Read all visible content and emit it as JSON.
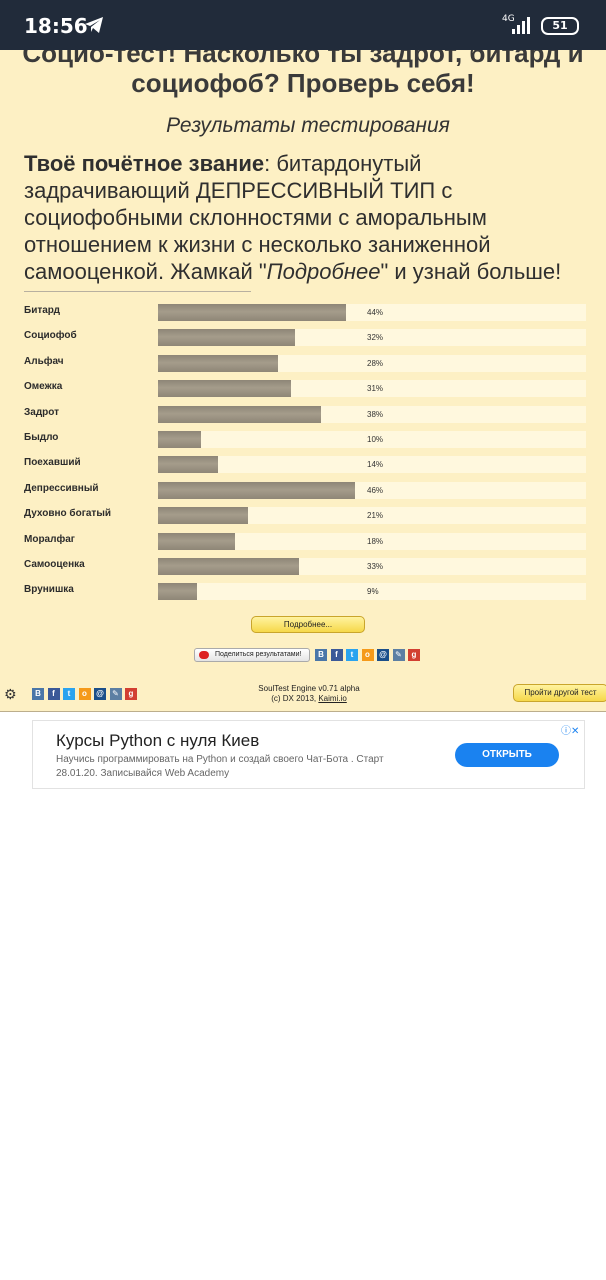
{
  "status_bar": {
    "time": "18:56",
    "network": "4G",
    "battery": "51"
  },
  "page": {
    "title": "Социо-тест! Насколько ты задрот, битард и социофоб? Проверь себя!",
    "subtitle": "Результаты тестирования",
    "result_label": "Твоё почётное звание",
    "result_text": ": битардонутый задрачивающий ДЕПРЕССИВНЫЙ ТИП с социофобными склонностями с аморальным отношением к жизни с несколько заниженной самооценкой. Жамкай \"",
    "result_link": "Подробнее",
    "result_tail": "\" и узнай больше!",
    "more_button": "Подробнее...",
    "share_button": "Поделиться результатами!",
    "engine_line1": "SoulTest Engine v0.71 alpha",
    "engine_line2": "(c) DX 2013, ",
    "engine_link": "Kaimi.io",
    "another_test_button": "Пройти другой тест"
  },
  "chart_data": {
    "type": "bar",
    "categories": [
      "Битард",
      "Социофоб",
      "Альфач",
      "Омежка",
      "Задрот",
      "Быдло",
      "Поехавший",
      "Депрессивный",
      "Духовно богатый",
      "Моралфаг",
      "Самооценка",
      "Врунишка"
    ],
    "values": [
      44,
      32,
      28,
      31,
      38,
      10,
      14,
      46,
      21,
      18,
      33,
      9
    ],
    "labels": [
      "44%",
      "32%",
      "28%",
      "31%",
      "38%",
      "10%",
      "14%",
      "46%",
      "21%",
      "18%",
      "33%",
      "9%"
    ],
    "unit": "%",
    "ylim": [
      0,
      100
    ],
    "colors": {
      "bar": "#9a917f",
      "track": "#fff8de"
    }
  },
  "share_icons": [
    {
      "name": "vk-icon",
      "glyph": "В",
      "color": "#4a76a8"
    },
    {
      "name": "facebook-icon",
      "glyph": "f",
      "color": "#3b5998"
    },
    {
      "name": "twitter-icon",
      "glyph": "t",
      "color": "#2aa3ef"
    },
    {
      "name": "odnoklassniki-icon",
      "glyph": "о",
      "color": "#f59a1a"
    },
    {
      "name": "mailru-icon",
      "glyph": "@",
      "color": "#1b4f8a"
    },
    {
      "name": "livejournal-icon",
      "glyph": "✎",
      "color": "#5c7fa3"
    },
    {
      "name": "googleplus-icon",
      "glyph": "g",
      "color": "#d23f31"
    }
  ],
  "ad": {
    "headline": "Курсы Python с нуля Киев",
    "description": "Научись программировать на Python и создай своего Чат-Бота . Старт 28.01.20. Записывайся Web Academy",
    "cta": "ОТКРЫТЬ"
  },
  "colors": {
    "page_bg": "#fdf0c4",
    "status_bg": "#212b3a",
    "button_yellow": "#f6d84a",
    "cta_blue": "#1a82f0"
  }
}
